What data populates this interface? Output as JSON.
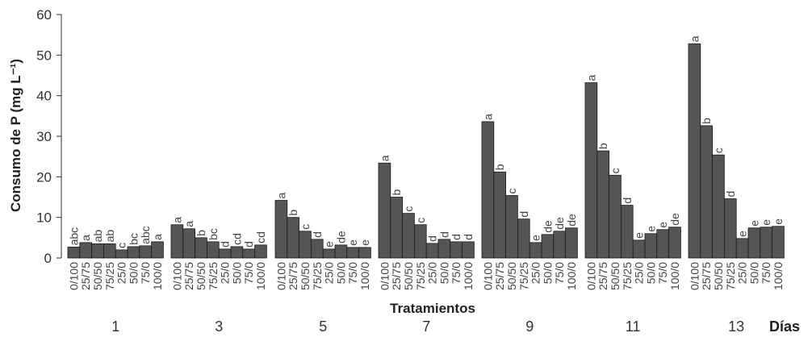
{
  "chart_data": {
    "type": "bar",
    "ylabel": "Consumo de P (mg L⁻¹)",
    "xlabel": "Tratamientos",
    "days_label": "Días",
    "ylim": [
      0,
      60
    ],
    "yticks": [
      "0",
      "10",
      "20",
      "30",
      "40",
      "50",
      "60"
    ],
    "categories": [
      "0/100",
      "25/75",
      "50/50",
      "75/25",
      "25/0",
      "50/0",
      "75/0",
      "100/0"
    ],
    "bar_color": "#555555",
    "grid": false,
    "groups": [
      {
        "day": "1",
        "values": [
          2.7,
          3.8,
          3.5,
          3.5,
          2.0,
          2.8,
          3.0,
          4.0
        ],
        "letters": [
          "abc",
          "a",
          "ab",
          "ab",
          "c",
          "bc",
          "abc",
          "a"
        ]
      },
      {
        "day": "3",
        "values": [
          8.2,
          7.2,
          5.0,
          4.0,
          2.2,
          2.8,
          2.2,
          3.2
        ],
        "letters": [
          "a",
          "a",
          "b",
          "bc",
          "d",
          "cd",
          "d",
          "cd"
        ]
      },
      {
        "day": "5",
        "values": [
          14.2,
          10.0,
          6.6,
          4.6,
          2.2,
          3.2,
          2.6,
          2.6
        ],
        "letters": [
          "a",
          "b",
          "c",
          "d",
          "e",
          "de",
          "e",
          "e"
        ]
      },
      {
        "day": "7",
        "values": [
          23.4,
          15.0,
          11.0,
          8.2,
          3.6,
          4.6,
          4.0,
          4.0
        ],
        "letters": [
          "a",
          "b",
          "c",
          "c",
          "d",
          "d",
          "d",
          "d"
        ]
      },
      {
        "day": "9",
        "values": [
          33.6,
          21.2,
          15.4,
          9.6,
          3.8,
          5.8,
          6.6,
          7.4
        ],
        "letters": [
          "a",
          "b",
          "c",
          "d",
          "e",
          "de",
          "de",
          "de"
        ]
      },
      {
        "day": "11",
        "values": [
          43.2,
          26.4,
          20.4,
          13.0,
          4.4,
          6.0,
          7.0,
          7.6
        ],
        "letters": [
          "a",
          "b",
          "c",
          "d",
          "e",
          "e",
          "e",
          "de"
        ]
      },
      {
        "day": "13",
        "values": [
          52.8,
          32.6,
          25.4,
          14.6,
          4.8,
          7.4,
          7.6,
          7.8
        ],
        "letters": [
          "a",
          "b",
          "c",
          "d",
          "e",
          "e",
          "e",
          "e"
        ]
      }
    ]
  }
}
